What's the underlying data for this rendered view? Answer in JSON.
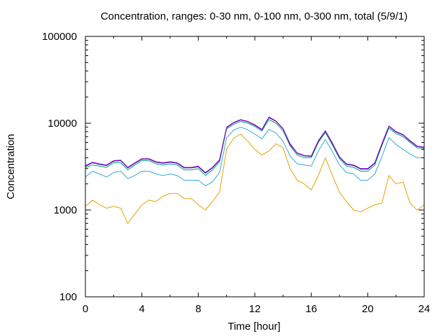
{
  "chart_data": {
    "type": "line",
    "title": "Concentration, ranges: 0-30 nm, 0-100 nm, 0-300 nm, total (5/9/1)",
    "xlabel": "Time [hour]",
    "ylabel": "Concentration",
    "xlim": [
      0,
      24
    ],
    "ylim": [
      100,
      100000
    ],
    "yscale": "log",
    "grid": false,
    "legend": "none",
    "x_ticks": [
      "0",
      "4",
      "8",
      "12",
      "16",
      "20",
      "24"
    ],
    "y_ticks": [
      "100",
      "1000",
      "10000",
      "100000"
    ],
    "x": [
      0,
      0.5,
      1,
      1.5,
      2,
      2.5,
      3,
      3.5,
      4,
      4.5,
      5,
      5.5,
      6,
      6.5,
      7,
      7.5,
      8,
      8.5,
      9,
      9.5,
      10,
      10.5,
      11,
      11.5,
      12,
      12.5,
      13,
      13.5,
      14,
      14.5,
      15,
      15.5,
      16,
      16.5,
      17,
      17.5,
      18,
      18.5,
      19,
      19.5,
      20,
      20.5,
      21,
      21.5,
      22,
      22.5,
      23,
      23.5,
      24
    ],
    "series": [
      {
        "color": "#e6a000",
        "values": [
          1100,
          1300,
          1150,
          1050,
          1100,
          1050,
          700,
          900,
          1150,
          1300,
          1250,
          1450,
          1550,
          1550,
          1350,
          1350,
          1150,
          1000,
          1250,
          1600,
          5000,
          6700,
          7500,
          6200,
          5000,
          4300,
          4800,
          5800,
          5200,
          3000,
          2200,
          2000,
          1700,
          2500,
          4000,
          2500,
          1600,
          1250,
          1000,
          950,
          1050,
          1150,
          1200,
          2500,
          2000,
          2100,
          1200,
          1000,
          1150
        ]
      },
      {
        "color": "#35a7d6",
        "values": [
          2400,
          2800,
          2600,
          2400,
          2700,
          2800,
          2300,
          2500,
          2800,
          2800,
          2600,
          2500,
          2600,
          2500,
          2200,
          2200,
          2200,
          1900,
          2100,
          2700,
          6800,
          8300,
          9000,
          8400,
          7500,
          6600,
          8500,
          7700,
          6200,
          4200,
          3400,
          3300,
          3200,
          4800,
          6500,
          4700,
          3300,
          2700,
          2600,
          2200,
          2200,
          2600,
          4100,
          6800,
          5700,
          5000,
          4400,
          4000,
          4000
        ]
      },
      {
        "color": "#009e73",
        "values": [
          3100,
          3300,
          3200,
          3100,
          3500,
          3500,
          2900,
          3300,
          3700,
          3700,
          3400,
          3300,
          3400,
          3300,
          2900,
          2900,
          3000,
          2500,
          2900,
          3600,
          8600,
          9700,
          10500,
          10000,
          9200,
          8100,
          11000,
          10000,
          8200,
          5500,
          4300,
          4000,
          4000,
          6000,
          7800,
          5600,
          3900,
          3200,
          3100,
          2800,
          2800,
          3300,
          5500,
          8800,
          7600,
          7000,
          6000,
          5200,
          5100
        ]
      },
      {
        "color": "#1b1b8f",
        "values": [
          3200,
          3500,
          3350,
          3250,
          3650,
          3700,
          3050,
          3450,
          3850,
          3850,
          3550,
          3450,
          3550,
          3450,
          3050,
          3050,
          3150,
          2650,
          3050,
          3750,
          8900,
          10100,
          10900,
          10400,
          9500,
          8400,
          11600,
          10500,
          8600,
          5700,
          4500,
          4200,
          4150,
          6200,
          8100,
          5800,
          4050,
          3350,
          3250,
          2950,
          2950,
          3450,
          5700,
          9200,
          7900,
          7300,
          6200,
          5400,
          5250
        ]
      },
      {
        "color": "#9400d3",
        "values": [
          3250,
          3550,
          3400,
          3300,
          3700,
          3750,
          3100,
          3500,
          3900,
          3900,
          3600,
          3500,
          3600,
          3500,
          3100,
          3100,
          3200,
          2700,
          3100,
          3800,
          9000,
          10200,
          11000,
          10500,
          9600,
          8500,
          11800,
          10600,
          8700,
          5800,
          4550,
          4250,
          4200,
          6300,
          8200,
          5900,
          4100,
          3400,
          3300,
          3000,
          3000,
          3500,
          5800,
          9300,
          8000,
          7400,
          6300,
          5450,
          5300
        ]
      }
    ]
  }
}
